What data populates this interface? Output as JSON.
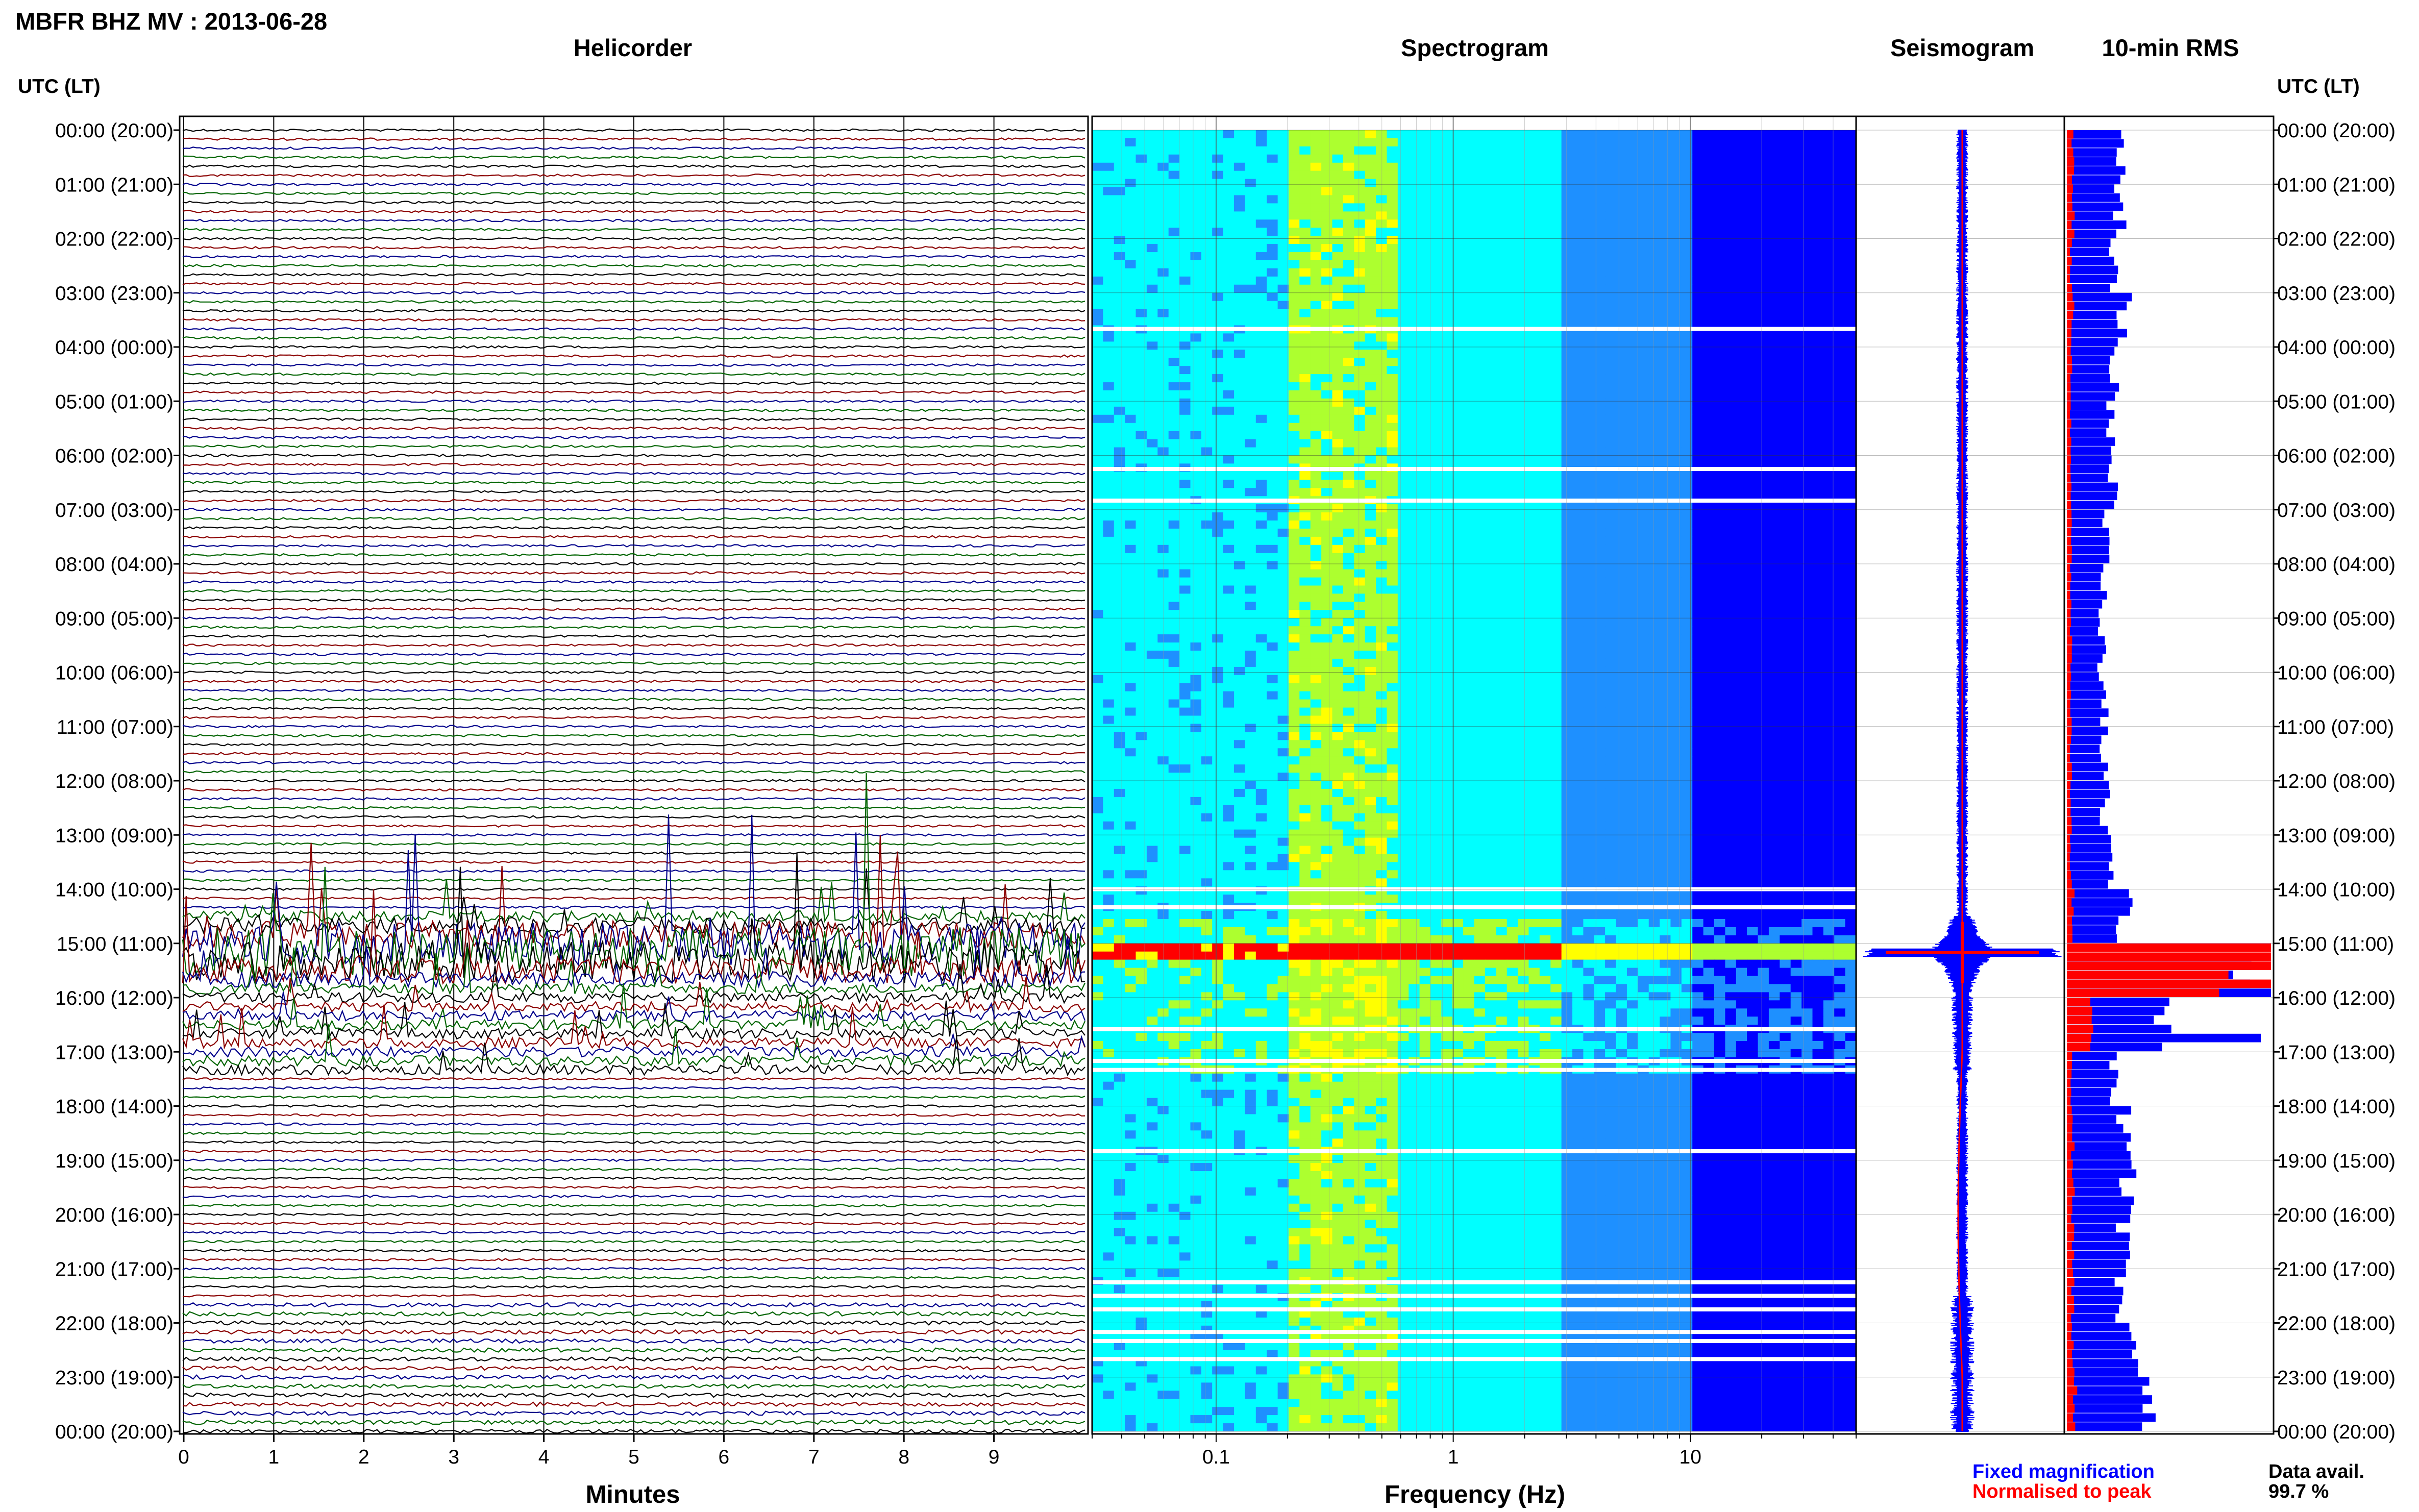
{
  "header": {
    "title": "MBFR BHZ MV : 2013-06-28"
  },
  "panels": {
    "helicorder": "Helicorder",
    "spectrogram": "Spectrogram",
    "seismogram": "Seismogram",
    "rms": "10-min RMS"
  },
  "time_axis": {
    "label_left": "UTC (LT)",
    "label_right": "UTC (LT)",
    "ticks": [
      "00:00 (20:00)",
      "01:00 (21:00)",
      "02:00 (22:00)",
      "03:00 (23:00)",
      "04:00 (00:00)",
      "05:00 (01:00)",
      "06:00 (02:00)",
      "07:00 (03:00)",
      "08:00 (04:00)",
      "09:00 (05:00)",
      "10:00 (06:00)",
      "11:00 (07:00)",
      "12:00 (08:00)",
      "13:00 (09:00)",
      "14:00 (10:00)",
      "15:00 (11:00)",
      "16:00 (12:00)",
      "17:00 (13:00)",
      "18:00 (14:00)",
      "19:00 (15:00)",
      "20:00 (16:00)",
      "21:00 (17:00)",
      "22:00 (18:00)",
      "23:00 (19:00)",
      "00:00 (20:00)"
    ]
  },
  "footer": {
    "minutes_label": "Minutes",
    "frequency_label": "Frequency (Hz)",
    "legend_fixed": "Fixed magnification",
    "legend_normalised": "Normalised to peak",
    "data_avail_label": "Data avail.",
    "data_avail_value": "99.7 %"
  },
  "colors": {
    "helicorder_traces": [
      "#000000",
      "#8b0000",
      "#00008b",
      "#006400"
    ],
    "fixed_magnification": "#0000ff",
    "normalised_to_peak": "#ff0000"
  },
  "chart_data": [
    {
      "type": "line",
      "name": "helicorder",
      "xlabel": "Minutes",
      "x_ticks": [
        "0",
        "1",
        "2",
        "3",
        "4",
        "5",
        "6",
        "7",
        "8",
        "9"
      ],
      "xlim": [
        0,
        10
      ],
      "line_minutes": 10,
      "lines_per_hour": 6,
      "hours": 24,
      "activity_window_utc": [
        "14:30",
        "17:20"
      ],
      "peak_activity_utc": "15:10"
    },
    {
      "type": "heatmap",
      "name": "spectrogram",
      "xlabel": "Frequency (Hz)",
      "x_scale": "log",
      "xlim": [
        0.03,
        50
      ],
      "x_ticks": [
        "0.1",
        "1",
        "10"
      ],
      "colormap": [
        "#00008b",
        "#0000ff",
        "#1e90ff",
        "#00ffff",
        "#adff2f",
        "#ffff00",
        "#ff0000"
      ],
      "gaps_utc": [
        "03:40",
        "06:15",
        "06:50",
        "14:00",
        "14:20",
        "16:35",
        "17:10",
        "17:20",
        "18:50",
        "21:15",
        "21:30",
        "21:45",
        "22:10",
        "22:20",
        "22:40"
      ]
    },
    {
      "type": "line",
      "name": "seismogram",
      "series": [
        {
          "name": "Fixed magnification"
        },
        {
          "name": "Normalised to peak"
        }
      ]
    },
    {
      "type": "bar",
      "name": "rms",
      "interval_minutes": 10,
      "series": [
        {
          "name": "Fixed magnification",
          "hourly_values": [
            0.28,
            0.26,
            0.22,
            0.28,
            0.24,
            0.22,
            0.22,
            0.19,
            0.18,
            0.17,
            0.18,
            0.18,
            0.19,
            0.2,
            0.28,
            0.95,
            0.45,
            0.22,
            0.28,
            0.3,
            0.27,
            0.26,
            0.32,
            0.38
          ]
        },
        {
          "name": "Normalised to peak",
          "hourly_values": [
            0.03,
            0.03,
            0.02,
            0.03,
            0.02,
            0.02,
            0.02,
            0.02,
            0.02,
            0.02,
            0.02,
            0.02,
            0.02,
            0.02,
            0.03,
            1.0,
            0.1,
            0.02,
            0.03,
            0.03,
            0.03,
            0.03,
            0.03,
            0.04
          ]
        }
      ]
    }
  ]
}
